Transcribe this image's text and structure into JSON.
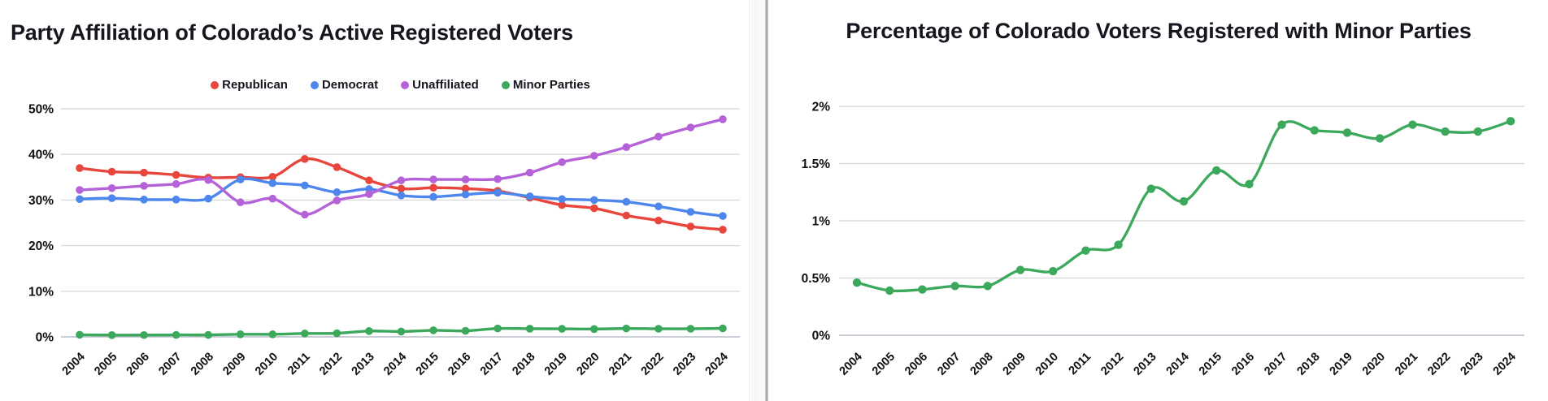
{
  "page": {
    "background": "#ffffff"
  },
  "style": {
    "title_color": "#16161f",
    "axis_label_color": "#111111",
    "gridline_color": "#dadada",
    "baseline_color": "#b9bdc9"
  },
  "chart_data": [
    {
      "type": "line",
      "title": "Party Affiliation of Colorado’s Active Registered Voters",
      "xlabel": "",
      "ylabel": "",
      "x": [
        "2004",
        "2005",
        "2006",
        "2007",
        "2008",
        "2009",
        "2010",
        "2011",
        "2012",
        "2013",
        "2014",
        "2015",
        "2016",
        "2017",
        "2018",
        "2019",
        "2020",
        "2021",
        "2022",
        "2023",
        "2024"
      ],
      "ylim": [
        0,
        50
      ],
      "ytick_values": [
        0,
        10,
        20,
        30,
        40,
        50
      ],
      "ytick_labels": [
        "0%",
        "10%",
        "20%",
        "30%",
        "40%",
        "50%"
      ],
      "grid": true,
      "legend_position": "top",
      "line_style": "smooth",
      "series": [
        {
          "name": "Republican",
          "color": "#E8453C",
          "values": [
            37.0,
            36.2,
            36.0,
            35.5,
            34.9,
            35.0,
            35.1,
            39.0,
            37.2,
            34.3,
            32.5,
            32.7,
            32.5,
            32.0,
            30.5,
            28.9,
            28.2,
            26.6,
            25.5,
            24.2,
            23.5
          ]
        },
        {
          "name": "Democrat",
          "color": "#4D86EC",
          "values": [
            30.2,
            30.4,
            30.1,
            30.1,
            30.3,
            34.5,
            33.7,
            33.2,
            31.7,
            32.4,
            31.0,
            30.7,
            31.2,
            31.6,
            30.8,
            30.2,
            30.0,
            29.6,
            28.6,
            27.4,
            26.5
          ]
        },
        {
          "name": "Unaffiliated",
          "color": "#B562D8",
          "values": [
            32.2,
            32.6,
            33.1,
            33.5,
            34.4,
            29.5,
            30.3,
            26.8,
            29.9,
            31.3,
            34.3,
            34.5,
            34.5,
            34.6,
            36.0,
            38.3,
            39.7,
            41.6,
            43.9,
            45.9,
            47.7
          ]
        },
        {
          "name": "Minor Parties",
          "color": "#3BA85C",
          "values": [
            0.46,
            0.39,
            0.4,
            0.43,
            0.43,
            0.57,
            0.56,
            0.74,
            0.79,
            1.28,
            1.17,
            1.44,
            1.32,
            1.84,
            1.79,
            1.77,
            1.72,
            1.84,
            1.78,
            1.78,
            1.87
          ]
        }
      ]
    },
    {
      "type": "line",
      "title": "Percentage of Colorado Voters Registered with Minor Parties",
      "xlabel": "",
      "ylabel": "",
      "x": [
        "2004",
        "2005",
        "2006",
        "2007",
        "2008",
        "2009",
        "2010",
        "2011",
        "2012",
        "2013",
        "2014",
        "2015",
        "2016",
        "2017",
        "2018",
        "2019",
        "2020",
        "2021",
        "2022",
        "2023",
        "2024"
      ],
      "ylim": [
        0,
        2
      ],
      "ytick_values": [
        0,
        0.5,
        1,
        1.5,
        2
      ],
      "ytick_labels": [
        "0%",
        "0.5%",
        "1%",
        "1.5%",
        "2%"
      ],
      "grid": true,
      "legend_position": "none",
      "line_style": "smooth",
      "series": [
        {
          "name": "Minor Parties",
          "color": "#3BA85C",
          "values": [
            0.46,
            0.39,
            0.4,
            0.43,
            0.43,
            0.57,
            0.56,
            0.74,
            0.79,
            1.28,
            1.17,
            1.44,
            1.32,
            1.84,
            1.79,
            1.77,
            1.72,
            1.84,
            1.78,
            1.78,
            1.87
          ]
        }
      ]
    }
  ]
}
